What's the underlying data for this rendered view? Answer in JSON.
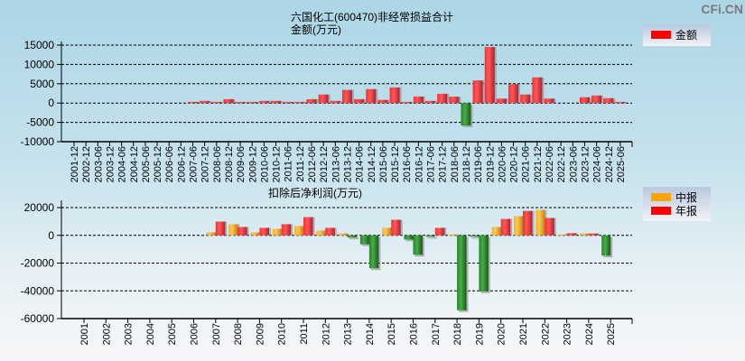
{
  "watermark": "CFi.CN",
  "chart_data": [
    {
      "type": "bar",
      "title": "六国化工(600470)非经常损益合计",
      "ylabel": "金额(万元)",
      "legend": [
        {
          "name": "金额",
          "color": "#ff0000"
        }
      ],
      "legend_placement": "top-right",
      "ylim": [
        -10000,
        15000
      ],
      "yticks": [
        15000,
        10000,
        5000,
        0,
        -5000,
        -10000
      ],
      "grid": true,
      "categories": [
        "2001-12",
        "2002-12",
        "2003-06",
        "2003-12",
        "2004-06",
        "2004-12",
        "2005-06",
        "2005-12",
        "2006-06",
        "2006-12",
        "2007-06",
        "2007-12",
        "2008-06",
        "2008-12",
        "2009-06",
        "2009-12",
        "2010-06",
        "2010-12",
        "2011-06",
        "2011-12",
        "2012-06",
        "2012-12",
        "2013-06",
        "2013-12",
        "2014-06",
        "2014-12",
        "2015-06",
        "2015-12",
        "2016-06",
        "2016-12",
        "2017-06",
        "2017-12",
        "2018-06",
        "2018-12",
        "2019-06",
        "2019-12",
        "2020-06",
        "2020-12",
        "2021-06",
        "2021-12",
        "2022-06",
        "2022-12",
        "2023-06",
        "2023-12",
        "2024-06",
        "2024-12",
        "2025-06"
      ],
      "series": [
        {
          "name": "金额",
          "values": [
            0,
            0,
            0,
            0,
            0,
            0,
            0,
            0,
            0,
            0,
            300,
            550,
            300,
            1000,
            300,
            300,
            550,
            550,
            300,
            300,
            1000,
            2200,
            550,
            3400,
            1000,
            3600,
            800,
            4050,
            300,
            1700,
            550,
            2400,
            1650,
            -5800,
            5850,
            14500,
            1150,
            4900,
            2200,
            6650,
            1150,
            0,
            0,
            1500,
            1950,
            1250,
            300
          ]
        }
      ]
    },
    {
      "type": "bar",
      "title": "扣除后净利润(万元)",
      "legend": [
        {
          "name": "中报",
          "color": "#ffa500"
        },
        {
          "name": "年报",
          "color": "#ff0000"
        }
      ],
      "legend_placement": "top-right",
      "negative_color": "#2e8b2e",
      "ylim": [
        -60000,
        20000
      ],
      "yticks": [
        20000,
        0,
        -20000,
        -40000,
        -60000
      ],
      "grid": true,
      "categories": [
        "2001",
        "2002",
        "2003",
        "2004",
        "2005",
        "2006",
        "2007",
        "2008",
        "2009",
        "2010",
        "2011",
        "2012",
        "2013",
        "2014",
        "2015",
        "2016",
        "2017",
        "2018",
        "2019",
        "2020",
        "2021",
        "2022",
        "2023",
        "2024",
        "2025"
      ],
      "series": [
        {
          "name": "中报",
          "values": [
            null,
            null,
            null,
            null,
            null,
            null,
            2150,
            8000,
            2150,
            4700,
            6700,
            3400,
            1300,
            -6450,
            5400,
            -3000,
            -1000,
            600,
            -1000,
            6000,
            13800,
            18300,
            600,
            1300,
            -14600
          ]
        },
        {
          "name": "年报",
          "values": [
            null,
            null,
            null,
            null,
            null,
            null,
            9900,
            6000,
            5400,
            8000,
            13100,
            5400,
            -1500,
            -23700,
            11200,
            -14000,
            5400,
            -54000,
            -40400,
            11800,
            17600,
            12500,
            1500,
            1300,
            null
          ]
        }
      ]
    }
  ]
}
